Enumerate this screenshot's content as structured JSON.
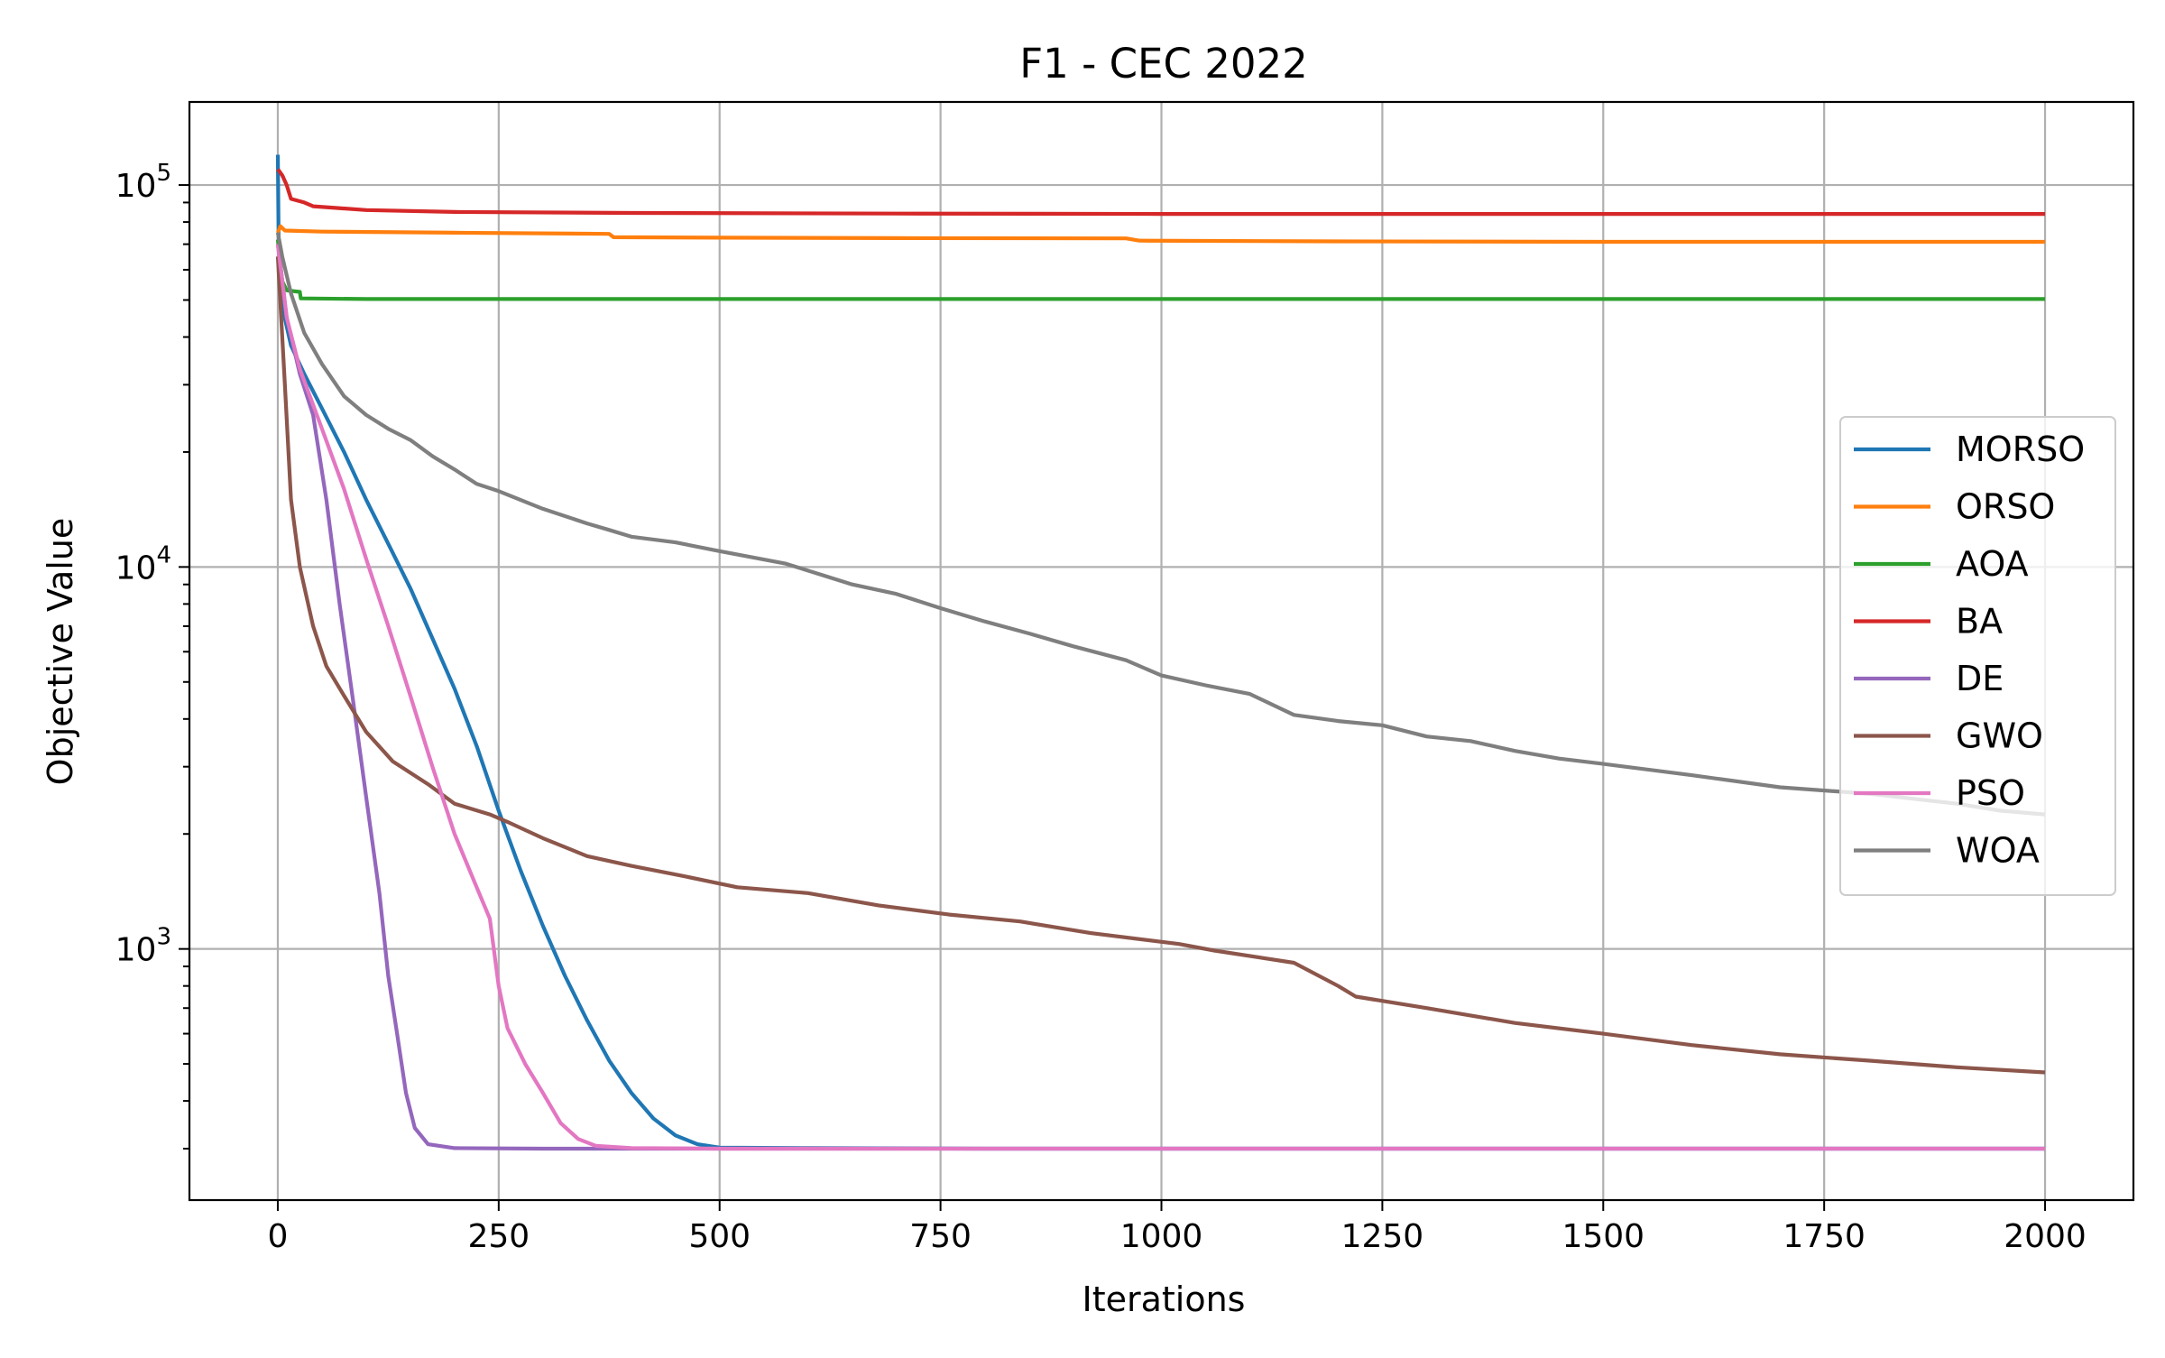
{
  "chart_data": {
    "type": "line",
    "title": "F1 - CEC 2022",
    "xlabel": "Iterations",
    "ylabel": "Objective Value",
    "xlim": [
      -100,
      2100
    ],
    "ylim": [
      220,
      165000
    ],
    "yscale": "log",
    "grid": true,
    "legend_position": "center-right",
    "x_ticks": [
      {
        "value": 0,
        "label": "0"
      },
      {
        "value": 250,
        "label": "250"
      },
      {
        "value": 500,
        "label": "500"
      },
      {
        "value": 750,
        "label": "750"
      },
      {
        "value": 1000,
        "label": "1000"
      },
      {
        "value": 1250,
        "label": "1250"
      },
      {
        "value": 1500,
        "label": "1500"
      },
      {
        "value": 1750,
        "label": "1750"
      },
      {
        "value": 2000,
        "label": "2000"
      }
    ],
    "y_ticks": [
      {
        "value": 1000,
        "base": "10",
        "exp": "3"
      },
      {
        "value": 10000,
        "base": "10",
        "exp": "4"
      },
      {
        "value": 100000,
        "base": "10",
        "exp": "5"
      }
    ],
    "series": [
      {
        "name": "MORSO",
        "color": "#1f77b4",
        "points": [
          [
            0,
            120000
          ],
          [
            1,
            70000
          ],
          [
            5,
            48000
          ],
          [
            15,
            38000
          ],
          [
            30,
            32000
          ],
          [
            50,
            26000
          ],
          [
            75,
            20000
          ],
          [
            100,
            15000
          ],
          [
            125,
            11500
          ],
          [
            150,
            8800
          ],
          [
            175,
            6500
          ],
          [
            200,
            4800
          ],
          [
            225,
            3400
          ],
          [
            250,
            2300
          ],
          [
            275,
            1600
          ],
          [
            300,
            1150
          ],
          [
            325,
            850
          ],
          [
            350,
            650
          ],
          [
            375,
            510
          ],
          [
            400,
            420
          ],
          [
            425,
            360
          ],
          [
            450,
            325
          ],
          [
            475,
            308
          ],
          [
            500,
            302
          ],
          [
            600,
            301
          ],
          [
            800,
            300
          ],
          [
            1000,
            300
          ],
          [
            1500,
            300
          ],
          [
            2000,
            300
          ]
        ]
      },
      {
        "name": "ORSO",
        "color": "#ff7f0e",
        "points": [
          [
            0,
            75000
          ],
          [
            3,
            78000
          ],
          [
            8,
            76000
          ],
          [
            50,
            75500
          ],
          [
            200,
            75000
          ],
          [
            375,
            74500
          ],
          [
            380,
            73000
          ],
          [
            500,
            72800
          ],
          [
            700,
            72600
          ],
          [
            960,
            72500
          ],
          [
            975,
            71500
          ],
          [
            1200,
            71200
          ],
          [
            1500,
            71000
          ],
          [
            2000,
            71000
          ]
        ]
      },
      {
        "name": "AOA",
        "color": "#2ca02c",
        "points": [
          [
            0,
            72000
          ],
          [
            5,
            56000
          ],
          [
            10,
            53000
          ],
          [
            25,
            52500
          ],
          [
            26,
            50500
          ],
          [
            100,
            50300
          ],
          [
            500,
            50300
          ],
          [
            1000,
            50300
          ],
          [
            1500,
            50300
          ],
          [
            2000,
            50300
          ]
        ]
      },
      {
        "name": "BA",
        "color": "#d62728",
        "points": [
          [
            0,
            110000
          ],
          [
            5,
            106000
          ],
          [
            10,
            100000
          ],
          [
            15,
            92000
          ],
          [
            30,
            90000
          ],
          [
            40,
            88000
          ],
          [
            100,
            86000
          ],
          [
            200,
            85000
          ],
          [
            400,
            84500
          ],
          [
            700,
            84200
          ],
          [
            1000,
            84000
          ],
          [
            1500,
            84000
          ],
          [
            2000,
            84000
          ]
        ]
      },
      {
        "name": "DE",
        "color": "#9467bd",
        "points": [
          [
            0,
            70000
          ],
          [
            10,
            45000
          ],
          [
            25,
            32000
          ],
          [
            40,
            25000
          ],
          [
            55,
            15000
          ],
          [
            70,
            8000
          ],
          [
            85,
            4500
          ],
          [
            100,
            2500
          ],
          [
            115,
            1400
          ],
          [
            125,
            850
          ],
          [
            135,
            600
          ],
          [
            145,
            420
          ],
          [
            155,
            340
          ],
          [
            170,
            308
          ],
          [
            200,
            301
          ],
          [
            300,
            300
          ],
          [
            500,
            300
          ],
          [
            1000,
            300
          ],
          [
            2000,
            300
          ]
        ]
      },
      {
        "name": "GWO",
        "color": "#8c564b",
        "points": [
          [
            0,
            65000
          ],
          [
            8,
            30000
          ],
          [
            15,
            15000
          ],
          [
            25,
            10000
          ],
          [
            40,
            7000
          ],
          [
            55,
            5500
          ],
          [
            75,
            4600
          ],
          [
            100,
            3700
          ],
          [
            130,
            3100
          ],
          [
            170,
            2700
          ],
          [
            200,
            2400
          ],
          [
            240,
            2250
          ],
          [
            260,
            2150
          ],
          [
            300,
            1950
          ],
          [
            350,
            1750
          ],
          [
            400,
            1650
          ],
          [
            460,
            1550
          ],
          [
            520,
            1450
          ],
          [
            600,
            1400
          ],
          [
            680,
            1300
          ],
          [
            760,
            1230
          ],
          [
            840,
            1180
          ],
          [
            920,
            1100
          ],
          [
            1020,
            1030
          ],
          [
            1060,
            990
          ],
          [
            1150,
            920
          ],
          [
            1200,
            800
          ],
          [
            1220,
            750
          ],
          [
            1300,
            700
          ],
          [
            1400,
            640
          ],
          [
            1500,
            600
          ],
          [
            1600,
            560
          ],
          [
            1700,
            530
          ],
          [
            1800,
            510
          ],
          [
            1900,
            490
          ],
          [
            2000,
            475
          ]
        ]
      },
      {
        "name": "PSO",
        "color": "#e377c2",
        "points": [
          [
            0,
            70000
          ],
          [
            10,
            45000
          ],
          [
            25,
            33000
          ],
          [
            50,
            23000
          ],
          [
            75,
            16000
          ],
          [
            100,
            10500
          ],
          [
            125,
            7000
          ],
          [
            150,
            4600
          ],
          [
            175,
            3000
          ],
          [
            200,
            2000
          ],
          [
            225,
            1450
          ],
          [
            240,
            1200
          ],
          [
            250,
            800
          ],
          [
            260,
            620
          ],
          [
            280,
            500
          ],
          [
            300,
            420
          ],
          [
            320,
            350
          ],
          [
            340,
            318
          ],
          [
            360,
            305
          ],
          [
            400,
            301
          ],
          [
            500,
            300
          ],
          [
            1000,
            300
          ],
          [
            2000,
            300
          ]
        ]
      },
      {
        "name": "WOA",
        "color": "#7f7f7f",
        "points": [
          [
            0,
            75000
          ],
          [
            5,
            65000
          ],
          [
            15,
            52000
          ],
          [
            30,
            41000
          ],
          [
            50,
            34000
          ],
          [
            75,
            28000
          ],
          [
            100,
            25000
          ],
          [
            125,
            23000
          ],
          [
            150,
            21500
          ],
          [
            175,
            19500
          ],
          [
            200,
            18000
          ],
          [
            225,
            16500
          ],
          [
            250,
            15800
          ],
          [
            300,
            14200
          ],
          [
            350,
            13000
          ],
          [
            375,
            12500
          ],
          [
            400,
            12000
          ],
          [
            450,
            11600
          ],
          [
            500,
            11000
          ],
          [
            575,
            10200
          ],
          [
            650,
            9000
          ],
          [
            700,
            8500
          ],
          [
            750,
            7800
          ],
          [
            800,
            7200
          ],
          [
            850,
            6700
          ],
          [
            900,
            6200
          ],
          [
            960,
            5700
          ],
          [
            1000,
            5200
          ],
          [
            1050,
            4900
          ],
          [
            1100,
            4650
          ],
          [
            1150,
            4100
          ],
          [
            1200,
            3950
          ],
          [
            1250,
            3850
          ],
          [
            1300,
            3600
          ],
          [
            1350,
            3500
          ],
          [
            1400,
            3300
          ],
          [
            1450,
            3150
          ],
          [
            1500,
            3050
          ],
          [
            1600,
            2850
          ],
          [
            1700,
            2650
          ],
          [
            1800,
            2550
          ],
          [
            1900,
            2400
          ],
          [
            1950,
            2300
          ],
          [
            2000,
            2250
          ]
        ]
      }
    ]
  }
}
